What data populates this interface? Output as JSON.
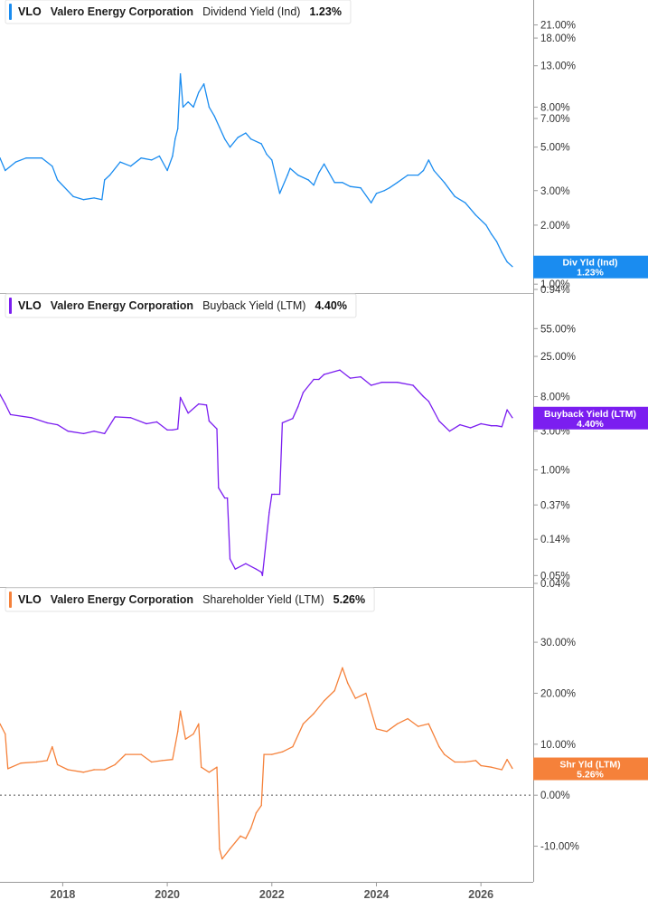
{
  "chart_data": [
    {
      "type": "line",
      "scale": "log",
      "color": "#1a8cf0",
      "legend": {
        "ticker": "VLO",
        "company": "Valero Energy Corporation",
        "metric": "Dividend Yield (Ind)",
        "value": "1.23%"
      },
      "badge": {
        "label": "Div Yld (Ind)",
        "value": "1.23%"
      },
      "y_ticks": [
        {
          "value": 21,
          "label": "21.00%"
        },
        {
          "value": 18,
          "label": "18.00%"
        },
        {
          "value": 13,
          "label": "13.00%"
        },
        {
          "value": 8,
          "label": "8.00%"
        },
        {
          "value": 7,
          "label": "7.00%"
        },
        {
          "value": 5,
          "label": "5.00%"
        },
        {
          "value": 3,
          "label": "3.00%"
        },
        {
          "value": 2,
          "label": "2.00%"
        },
        {
          "value": 1,
          "label": "1.00%"
        },
        {
          "value": 0.94,
          "label": "0.94%"
        }
      ],
      "ylim": [
        0.94,
        24
      ],
      "series": {
        "x": [
          2016.8,
          2016.9,
          2017.1,
          2017.3,
          2017.6,
          2017.8,
          2017.9,
          2018.2,
          2018.4,
          2018.6,
          2018.75,
          2018.8,
          2018.9,
          2019.1,
          2019.3,
          2019.5,
          2019.7,
          2019.85,
          2020.0,
          2020.1,
          2020.15,
          2020.2,
          2020.25,
          2020.3,
          2020.4,
          2020.5,
          2020.6,
          2020.7,
          2020.8,
          2020.9,
          2021.0,
          2021.1,
          2021.2,
          2021.35,
          2021.5,
          2021.6,
          2021.8,
          2021.9,
          2022.0,
          2022.15,
          2022.3,
          2022.35,
          2022.5,
          2022.7,
          2022.8,
          2022.9,
          2023.0,
          2023.2,
          2023.35,
          2023.5,
          2023.7,
          2023.9,
          2024.0,
          2024.15,
          2024.25,
          2024.4,
          2024.6,
          2024.8,
          2024.9,
          2025.0,
          2025.1,
          2025.3,
          2025.5,
          2025.7,
          2025.9,
          2026.1,
          2026.2,
          2026.3,
          2026.4,
          2026.5,
          2026.6
        ],
        "y": [
          4.4,
          3.8,
          4.2,
          4.4,
          4.4,
          4.0,
          3.4,
          2.8,
          2.7,
          2.75,
          2.7,
          3.4,
          3.6,
          4.2,
          4.0,
          4.4,
          4.3,
          4.5,
          3.8,
          4.5,
          5.5,
          6.2,
          11.8,
          8.0,
          8.5,
          8.0,
          9.5,
          10.5,
          8.0,
          7.2,
          6.3,
          5.5,
          5.0,
          5.6,
          5.9,
          5.5,
          5.2,
          4.6,
          4.3,
          2.9,
          3.6,
          3.9,
          3.6,
          3.4,
          3.2,
          3.7,
          4.1,
          3.3,
          3.3,
          3.15,
          3.1,
          2.6,
          2.9,
          3.0,
          3.1,
          3.3,
          3.6,
          3.6,
          3.8,
          4.3,
          3.8,
          3.3,
          2.8,
          2.6,
          2.25,
          2.0,
          1.8,
          1.65,
          1.45,
          1.3,
          1.23
        ]
      }
    },
    {
      "type": "line",
      "scale": "log",
      "color": "#7b1ef0",
      "legend": {
        "ticker": "VLO",
        "company": "Valero Energy Corporation",
        "metric": "Buyback Yield (LTM)",
        "value": "4.40%"
      },
      "badge": {
        "label": "Buyback Yield (LTM)",
        "value": "4.40%"
      },
      "y_ticks": [
        {
          "value": 55,
          "label": "55.00%"
        },
        {
          "value": 25,
          "label": "25.00%"
        },
        {
          "value": 8,
          "label": "8.00%"
        },
        {
          "value": 3,
          "label": "3.00%"
        },
        {
          "value": 1,
          "label": "1.00%"
        },
        {
          "value": 0.37,
          "label": "0.37%"
        },
        {
          "value": 0.14,
          "label": "0.14%"
        },
        {
          "value": 0.05,
          "label": "0.05%"
        },
        {
          "value": 0.04,
          "label": "0.04%"
        }
      ],
      "ylim": [
        0.04,
        100
      ],
      "series": {
        "x": [
          2016.8,
          2016.9,
          2017.0,
          2017.4,
          2017.7,
          2017.9,
          2018.1,
          2018.4,
          2018.6,
          2018.8,
          2019.0,
          2019.3,
          2019.6,
          2019.8,
          2020.0,
          2020.1,
          2020.2,
          2020.25,
          2020.4,
          2020.6,
          2020.75,
          2020.8,
          2020.95,
          2020.98,
          2021.1,
          2021.15,
          2021.2,
          2021.3,
          2021.5,
          2021.7,
          2021.8,
          2021.82,
          2021.95,
          2022.0,
          2022.05,
          2022.15,
          2022.2,
          2022.4,
          2022.5,
          2022.6,
          2022.8,
          2022.9,
          2023.0,
          2023.3,
          2023.5,
          2023.7,
          2023.9,
          2024.1,
          2024.4,
          2024.7,
          2024.9,
          2025.0,
          2025.2,
          2025.4,
          2025.6,
          2025.8,
          2026.0,
          2026.2,
          2026.3,
          2026.4,
          2026.5,
          2026.6
        ],
        "y": [
          8.5,
          6.5,
          4.8,
          4.4,
          3.8,
          3.6,
          3.0,
          2.8,
          3.0,
          2.8,
          4.5,
          4.4,
          3.7,
          3.9,
          3.1,
          3.1,
          3.2,
          7.8,
          5.0,
          6.5,
          6.3,
          4.0,
          3.2,
          0.6,
          0.45,
          0.45,
          0.08,
          0.06,
          0.07,
          0.06,
          0.055,
          0.05,
          0.3,
          0.5,
          0.5,
          0.5,
          3.8,
          4.3,
          6.0,
          9.0,
          13.0,
          13.0,
          15.0,
          17.0,
          13.5,
          14.0,
          11.0,
          12.0,
          12.0,
          11.0,
          8.0,
          7.0,
          4.0,
          3.0,
          3.6,
          3.3,
          3.7,
          3.5,
          3.5,
          3.4,
          5.5,
          4.4
        ]
      }
    },
    {
      "type": "line",
      "scale": "linear",
      "color": "#f5813a",
      "legend": {
        "ticker": "VLO",
        "company": "Valero Energy Corporation",
        "metric": "Shareholder Yield (LTM)",
        "value": "5.26%"
      },
      "badge": {
        "label": "Shr Yld (LTM)",
        "value": "5.26%"
      },
      "y_ticks": [
        {
          "value": 30,
          "label": "30.00%"
        },
        {
          "value": 20,
          "label": "20.00%"
        },
        {
          "value": 10,
          "label": "10.00%"
        },
        {
          "value": 0,
          "label": "0.00%"
        },
        {
          "value": -10,
          "label": "-10.00%"
        }
      ],
      "ylim": [
        -17,
        38
      ],
      "zero_line": true,
      "series": {
        "x": [
          2016.8,
          2016.9,
          2016.95,
          2017.2,
          2017.5,
          2017.7,
          2017.8,
          2017.9,
          2018.1,
          2018.4,
          2018.6,
          2018.8,
          2019.0,
          2019.2,
          2019.5,
          2019.7,
          2019.9,
          2020.1,
          2020.2,
          2020.25,
          2020.35,
          2020.5,
          2020.6,
          2020.65,
          2020.8,
          2020.95,
          2021.0,
          2021.05,
          2021.2,
          2021.4,
          2021.5,
          2021.6,
          2021.7,
          2021.8,
          2021.85,
          2022.0,
          2022.2,
          2022.4,
          2022.6,
          2022.8,
          2023.0,
          2023.2,
          2023.35,
          2023.45,
          2023.6,
          2023.8,
          2024.0,
          2024.2,
          2024.4,
          2024.6,
          2024.8,
          2025.0,
          2025.2,
          2025.3,
          2025.5,
          2025.7,
          2025.9,
          2026.0,
          2026.2,
          2026.4,
          2026.5,
          2026.6
        ],
        "y": [
          14.0,
          12.0,
          5.2,
          6.3,
          6.5,
          6.8,
          9.5,
          6.0,
          5.0,
          4.5,
          5.0,
          5.0,
          6.0,
          8.0,
          8.0,
          6.5,
          6.8,
          7.0,
          12.5,
          16.5,
          11.0,
          12.0,
          14.0,
          5.5,
          4.5,
          5.5,
          -10.5,
          -12.5,
          -10.5,
          -8.0,
          -8.5,
          -6.5,
          -3.5,
          -2.0,
          8.0,
          8.0,
          8.5,
          9.5,
          14.0,
          16.0,
          18.5,
          20.5,
          25.0,
          22.0,
          19.0,
          20.0,
          13.0,
          12.5,
          14.0,
          15.0,
          13.5,
          14.0,
          9.5,
          8.0,
          6.5,
          6.5,
          6.8,
          5.8,
          5.5,
          5.0,
          7.0,
          5.26
        ]
      }
    }
  ],
  "x_axis": {
    "ticks": [
      {
        "value": 2018,
        "label": "2018"
      },
      {
        "value": 2020,
        "label": "2020"
      },
      {
        "value": 2022,
        "label": "2022"
      },
      {
        "value": 2024,
        "label": "2024"
      },
      {
        "value": 2026,
        "label": "2026"
      }
    ],
    "range": [
      2016.8,
      2027.0
    ]
  }
}
